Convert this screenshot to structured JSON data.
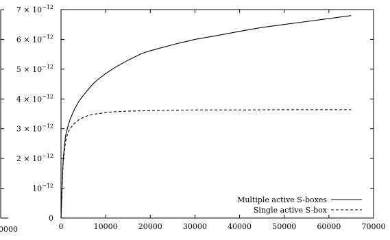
{
  "chart_data": {
    "type": "line",
    "title": "",
    "xlabel": "",
    "ylabel": "",
    "xlim": [
      0,
      70000
    ],
    "ylim": [
      0,
      7e-12
    ],
    "grid": false,
    "legend_position": "bottom-right",
    "x_ticks": [
      {
        "value": 0,
        "label": "0"
      },
      {
        "value": 10000,
        "label": "10000"
      },
      {
        "value": 20000,
        "label": "20000"
      },
      {
        "value": 30000,
        "label": "30000"
      },
      {
        "value": 40000,
        "label": "40000"
      },
      {
        "value": 50000,
        "label": "50000"
      },
      {
        "value": 60000,
        "label": "60000"
      },
      {
        "value": 70000,
        "label": "70000"
      }
    ],
    "y_ticks": [
      {
        "value": 0,
        "mantissa": "0",
        "exponent": ""
      },
      {
        "value": 1e-12,
        "mantissa": "10",
        "exponent": "−12"
      },
      {
        "value": 2e-12,
        "mantissa": "2 × 10",
        "exponent": "−12"
      },
      {
        "value": 3e-12,
        "mantissa": "3 × 10",
        "exponent": "−12"
      },
      {
        "value": 4e-12,
        "mantissa": "4 × 10",
        "exponent": "−12"
      },
      {
        "value": 5e-12,
        "mantissa": "5 × 10",
        "exponent": "−12"
      },
      {
        "value": 6e-12,
        "mantissa": "6 × 10",
        "exponent": "−12"
      },
      {
        "value": 7e-12,
        "mantissa": "7 × 10",
        "exponent": "−12"
      }
    ],
    "left_partial_label": "0000",
    "series": [
      {
        "name": "Multiple active S-boxes",
        "style": "solid",
        "color": "#000000",
        "x": [
          0,
          250,
          500,
          1000,
          1500,
          2000,
          3000,
          4000,
          5000,
          6000,
          7000,
          8000,
          10000,
          12000,
          15000,
          18000,
          20000,
          25000,
          30000,
          35000,
          40000,
          45000,
          50000,
          55000,
          60000,
          65000
        ],
        "y": [
          0,
          1.1e-12,
          2e-12,
          2.75e-12,
          3.05e-12,
          3.3e-12,
          3.65e-12,
          3.92e-12,
          4.12e-12,
          4.3e-12,
          4.48e-12,
          4.62e-12,
          4.85e-12,
          5.05e-12,
          5.3e-12,
          5.52e-12,
          5.62e-12,
          5.82e-12,
          6e-12,
          6.13e-12,
          6.27e-12,
          6.4e-12,
          6.5e-12,
          6.6e-12,
          6.7e-12,
          6.8e-12
        ]
      },
      {
        "name": "Single active S-box",
        "style": "dashed",
        "color": "#000000",
        "x": [
          0,
          250,
          500,
          1000,
          1500,
          2000,
          3000,
          4000,
          5000,
          6000,
          8000,
          10000,
          12000,
          15000,
          20000,
          25000,
          30000,
          40000,
          50000,
          60000,
          65000
        ],
        "y": [
          0,
          1e-12,
          1.9e-12,
          2.55e-12,
          2.85e-12,
          3e-12,
          3.18e-12,
          3.3e-12,
          3.38e-12,
          3.44e-12,
          3.5e-12,
          3.54e-12,
          3.57e-12,
          3.59e-12,
          3.61e-12,
          3.62e-12,
          3.63e-12,
          3.63e-12,
          3.64e-12,
          3.64e-12,
          3.64e-12
        ]
      }
    ]
  }
}
